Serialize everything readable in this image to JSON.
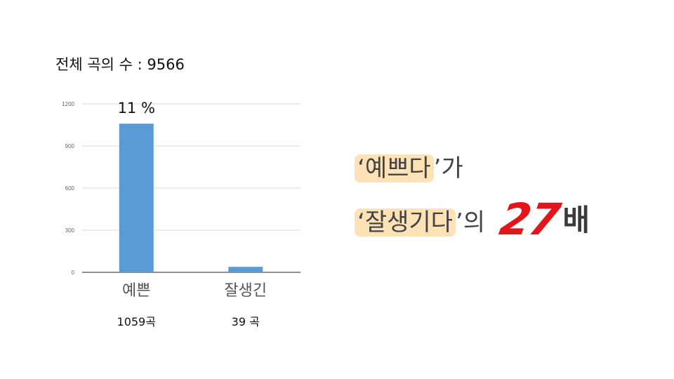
{
  "header": {
    "title": "전체 곡의 수 : 9566"
  },
  "chart_data": {
    "type": "bar",
    "categories": [
      "예쁜",
      "잘생긴"
    ],
    "values": [
      1059,
      39
    ],
    "count_labels": [
      "1059곡",
      "39 곡"
    ],
    "annotation": "11 %",
    "ylim": [
      0,
      1200
    ],
    "yticks": [
      0,
      300,
      600,
      900,
      1200
    ],
    "grid": true,
    "bar_color": "#5b9bd5"
  },
  "callout": {
    "line1": {
      "open_quote": "‘",
      "word": "예쁘다",
      "close_quote": "’",
      "suffix": "가"
    },
    "line2": {
      "open_quote": "‘",
      "word": "잘생기다",
      "close_quote": "’",
      "suffix": "의"
    },
    "ratio": "27",
    "unit": "배",
    "ratio_color": "#e3141a",
    "highlight_color": "#fde2b5"
  }
}
